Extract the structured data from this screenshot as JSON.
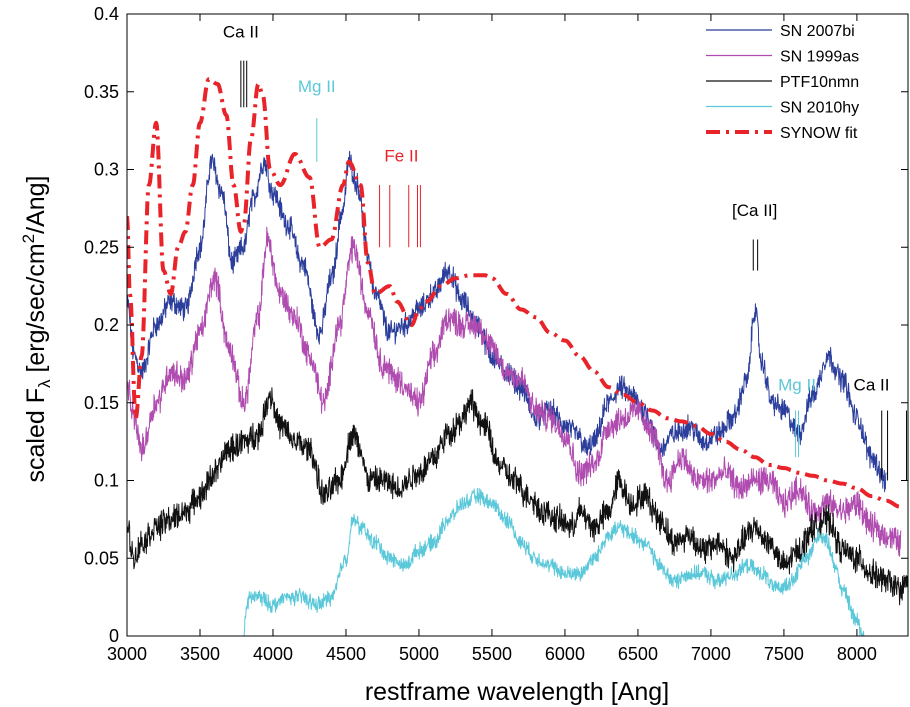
{
  "chart_data": {
    "type": "line",
    "xlabel": "restframe wavelength [Ang]",
    "ylabel_prefix": "scaled F",
    "ylabel_sub": "λ",
    "ylabel_mid": " [erg/sec/cm",
    "ylabel_sup": "2",
    "ylabel_suffix": "/Ang]",
    "xlim": [
      3000,
      8350
    ],
    "ylim": [
      0,
      0.4
    ],
    "x_ticks": [
      3000,
      3500,
      4000,
      4500,
      5000,
      5500,
      6000,
      6500,
      7000,
      7500,
      8000
    ],
    "x_tick_labels": [
      "3000",
      "3500",
      "4000",
      "4500",
      "5000",
      "5500",
      "6000",
      "6500",
      "7000",
      "7500",
      "8000"
    ],
    "y_ticks": [
      0,
      0.05,
      0.1,
      0.15,
      0.2,
      0.25,
      0.3,
      0.35,
      0.4
    ],
    "y_tick_labels": [
      "0",
      "0.05",
      "0.1",
      "0.15",
      "0.2",
      "0.25",
      "0.3",
      "0.35",
      "0.4"
    ],
    "grid": false,
    "legend_position": "top-right",
    "series": [
      {
        "name": "SN 2007bi",
        "color": "#2b3e9c",
        "style": "solid",
        "noise": 0.006,
        "x": [
          3000,
          3050,
          3100,
          3200,
          3300,
          3400,
          3500,
          3580,
          3650,
          3720,
          3800,
          3860,
          3940,
          4000,
          4100,
          4200,
          4320,
          4400,
          4480,
          4520,
          4580,
          4650,
          4700,
          4800,
          4900,
          5000,
          5100,
          5200,
          5300,
          5400,
          5500,
          5600,
          5700,
          5800,
          5900,
          6000,
          6080,
          6150,
          6200,
          6300,
          6380,
          6450,
          6550,
          6650,
          6750,
          6850,
          6950,
          7050,
          7150,
          7250,
          7300,
          7350,
          7420,
          7500,
          7600,
          7700,
          7800,
          7900,
          8000,
          8100,
          8200
        ],
        "y": [
          0.215,
          0.18,
          0.17,
          0.2,
          0.215,
          0.21,
          0.25,
          0.305,
          0.285,
          0.24,
          0.25,
          0.28,
          0.305,
          0.285,
          0.265,
          0.24,
          0.195,
          0.23,
          0.275,
          0.305,
          0.29,
          0.245,
          0.22,
          0.195,
          0.2,
          0.21,
          0.22,
          0.235,
          0.215,
          0.2,
          0.18,
          0.17,
          0.16,
          0.14,
          0.145,
          0.135,
          0.13,
          0.12,
          0.125,
          0.15,
          0.16,
          0.155,
          0.145,
          0.12,
          0.13,
          0.135,
          0.125,
          0.13,
          0.14,
          0.165,
          0.21,
          0.175,
          0.15,
          0.145,
          0.13,
          0.155,
          0.18,
          0.165,
          0.14,
          0.115,
          0.1
        ]
      },
      {
        "name": "SN 1999as",
        "color": "#b04cb0",
        "style": "solid",
        "noise": 0.007,
        "x": [
          3000,
          3050,
          3100,
          3200,
          3300,
          3400,
          3500,
          3600,
          3700,
          3800,
          3900,
          3960,
          4050,
          4150,
          4250,
          4350,
          4450,
          4550,
          4650,
          4750,
          4850,
          5000,
          5100,
          5200,
          5300,
          5400,
          5500,
          5600,
          5700,
          5800,
          5900,
          6000,
          6100,
          6200,
          6300,
          6400,
          6500,
          6600,
          6700,
          6800,
          6900,
          7000,
          7100,
          7200,
          7300,
          7400,
          7500,
          7600,
          7700,
          7800,
          7900,
          8000,
          8100,
          8200,
          8300
        ],
        "y": [
          0.16,
          0.14,
          0.12,
          0.15,
          0.17,
          0.165,
          0.195,
          0.23,
          0.185,
          0.15,
          0.205,
          0.255,
          0.22,
          0.205,
          0.18,
          0.15,
          0.2,
          0.25,
          0.21,
          0.175,
          0.165,
          0.15,
          0.18,
          0.205,
          0.2,
          0.2,
          0.185,
          0.17,
          0.165,
          0.145,
          0.14,
          0.13,
          0.105,
          0.11,
          0.135,
          0.14,
          0.145,
          0.13,
          0.1,
          0.115,
          0.1,
          0.1,
          0.105,
          0.095,
          0.1,
          0.1,
          0.085,
          0.095,
          0.08,
          0.085,
          0.08,
          0.085,
          0.07,
          0.065,
          0.06
        ]
      },
      {
        "name": "PTF10nmn",
        "color": "#111111",
        "style": "solid",
        "noise": 0.007,
        "x": [
          3000,
          3050,
          3100,
          3200,
          3300,
          3400,
          3500,
          3600,
          3700,
          3800,
          3900,
          3980,
          4050,
          4150,
          4250,
          4350,
          4450,
          4550,
          4600,
          4650,
          4750,
          4850,
          5000,
          5100,
          5200,
          5300,
          5350,
          5450,
          5550,
          5650,
          5750,
          5850,
          5950,
          6050,
          6100,
          6200,
          6300,
          6370,
          6450,
          6550,
          6650,
          6750,
          6850,
          6950,
          7050,
          7150,
          7250,
          7300,
          7400,
          7500,
          7600,
          7700,
          7800,
          7900,
          8000,
          8100,
          8200,
          8300,
          8350
        ],
        "y": [
          0.07,
          0.05,
          0.06,
          0.07,
          0.075,
          0.08,
          0.09,
          0.105,
          0.12,
          0.125,
          0.13,
          0.155,
          0.135,
          0.125,
          0.12,
          0.09,
          0.1,
          0.13,
          0.12,
          0.1,
          0.1,
          0.095,
          0.105,
          0.115,
          0.13,
          0.14,
          0.15,
          0.135,
          0.11,
          0.1,
          0.09,
          0.08,
          0.075,
          0.07,
          0.08,
          0.07,
          0.08,
          0.1,
          0.085,
          0.09,
          0.075,
          0.06,
          0.065,
          0.055,
          0.06,
          0.05,
          0.065,
          0.07,
          0.06,
          0.045,
          0.055,
          0.07,
          0.075,
          0.055,
          0.05,
          0.04,
          0.035,
          0.03,
          0.035
        ]
      },
      {
        "name": "SN 2010hy",
        "color": "#5bc8d9",
        "style": "solid",
        "noise": 0.004,
        "x": [
          3800,
          3820,
          3850,
          3900,
          4000,
          4100,
          4200,
          4300,
          4400,
          4500,
          4550,
          4600,
          4700,
          4800,
          4900,
          5000,
          5100,
          5200,
          5300,
          5400,
          5500,
          5600,
          5700,
          5800,
          5900,
          6000,
          6100,
          6200,
          6300,
          6380,
          6450,
          6550,
          6650,
          6750,
          6850,
          6950,
          7050,
          7150,
          7250,
          7350,
          7450,
          7550,
          7650,
          7750,
          7800,
          7850,
          7900,
          8000,
          8050
        ],
        "y": [
          0.0,
          0.02,
          0.025,
          0.025,
          0.02,
          0.025,
          0.025,
          0.02,
          0.025,
          0.05,
          0.075,
          0.07,
          0.06,
          0.05,
          0.045,
          0.055,
          0.06,
          0.075,
          0.085,
          0.09,
          0.085,
          0.075,
          0.06,
          0.05,
          0.045,
          0.04,
          0.04,
          0.05,
          0.065,
          0.07,
          0.065,
          0.06,
          0.045,
          0.035,
          0.04,
          0.04,
          0.035,
          0.04,
          0.045,
          0.04,
          0.03,
          0.035,
          0.05,
          0.065,
          0.06,
          0.045,
          0.03,
          0.01,
          0.0
        ]
      },
      {
        "name": "SYNOW fit",
        "color": "#e8232a",
        "style": "dashdot",
        "noise": 0,
        "x": [
          3000,
          3020,
          3060,
          3100,
          3150,
          3200,
          3250,
          3300,
          3350,
          3400,
          3450,
          3500,
          3560,
          3620,
          3680,
          3730,
          3780,
          3800,
          3850,
          3900,
          3930,
          3980,
          4050,
          4150,
          4250,
          4320,
          4400,
          4480,
          4520,
          4600,
          4650,
          4700,
          4800,
          4850,
          4950,
          5000,
          5050,
          5150,
          5250,
          5350,
          5450,
          5500,
          5600,
          5700,
          5800,
          5900,
          6000,
          6100,
          6200,
          6300,
          6400,
          6500,
          6600,
          6700,
          6800,
          6900,
          7000,
          7100,
          7200,
          7300,
          7400,
          7500,
          7600,
          7700,
          7800,
          7900,
          8000,
          8100,
          8200,
          8300
        ],
        "y": [
          0.27,
          0.22,
          0.14,
          0.18,
          0.29,
          0.33,
          0.235,
          0.22,
          0.25,
          0.26,
          0.29,
          0.33,
          0.358,
          0.355,
          0.335,
          0.29,
          0.26,
          0.265,
          0.32,
          0.355,
          0.348,
          0.3,
          0.29,
          0.31,
          0.295,
          0.25,
          0.255,
          0.29,
          0.305,
          0.29,
          0.24,
          0.22,
          0.225,
          0.215,
          0.2,
          0.21,
          0.215,
          0.225,
          0.23,
          0.232,
          0.232,
          0.23,
          0.22,
          0.21,
          0.205,
          0.195,
          0.19,
          0.18,
          0.17,
          0.16,
          0.155,
          0.15,
          0.145,
          0.14,
          0.138,
          0.135,
          0.13,
          0.125,
          0.12,
          0.115,
          0.11,
          0.108,
          0.105,
          0.103,
          0.1,
          0.098,
          0.095,
          0.09,
          0.087,
          0.083
        ]
      }
    ],
    "annotations": [
      {
        "text": "Ca II",
        "x": 3780,
        "y": 0.385,
        "color": "#000000",
        "lines": [
          3780,
          3800,
          3820
        ],
        "line_top": 0.37,
        "line_bottom": 0.34
      },
      {
        "text": "Mg II",
        "x": 4300,
        "y": 0.35,
        "color": "#5bc8d9",
        "lines": [
          4300
        ],
        "line_top": 0.333,
        "line_bottom": 0.305
      },
      {
        "text": "Fe II",
        "x": 4880,
        "y": 0.305,
        "color": "#e8232a",
        "lines": [
          4730,
          4800,
          4930,
          4990,
          5010
        ],
        "line_top": 0.29,
        "line_bottom": 0.25
      },
      {
        "text": "[Ca II]",
        "x": 7300,
        "y": 0.27,
        "color": "#000000",
        "lines": [
          7290,
          7320
        ],
        "line_top": 0.255,
        "line_bottom": 0.235
      },
      {
        "text": "Mg II",
        "x": 7590,
        "y": 0.158,
        "color": "#5bc8d9",
        "lines": [
          7580,
          7600
        ],
        "line_top": 0.145,
        "line_bottom": 0.115
      },
      {
        "text": "Ca II",
        "x": 8100,
        "y": 0.158,
        "color": "#000000",
        "lines": [
          8170,
          8210,
          8340
        ],
        "line_top": 0.145,
        "line_bottom": 0.1
      }
    ]
  }
}
